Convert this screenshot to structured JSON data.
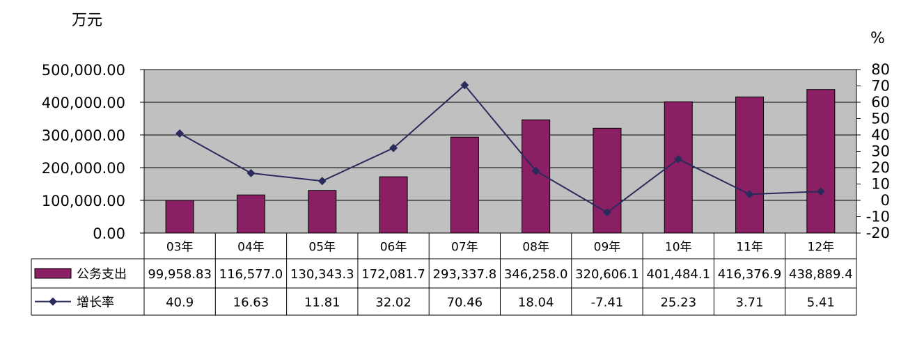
{
  "left_unit": "万元",
  "right_unit": "%",
  "colors": {
    "plot_bg": "#c0c0c0",
    "bar": "#8b1f63",
    "line": "#2a2a5c",
    "grid": "#000000"
  },
  "chart_data": {
    "type": "bar",
    "title": "",
    "categories": [
      "03年",
      "04年",
      "05年",
      "06年",
      "07年",
      "08年",
      "09年",
      "10年",
      "11年",
      "12年"
    ],
    "series": [
      {
        "name": "公务支出",
        "type": "bar",
        "axis": "left",
        "values": [
          99958.83,
          116577.0,
          130343.3,
          172081.7,
          293337.8,
          346258.0,
          320606.1,
          401484.1,
          416376.9,
          438889.4
        ],
        "labels": [
          "99,958.83",
          "116,577.0",
          "130,343.3",
          "172,081.7",
          "293,337.8",
          "346,258.0",
          "320,606.1",
          "401,484.1",
          "416,376.9",
          "438,889.4"
        ]
      },
      {
        "name": "增长率",
        "type": "line",
        "axis": "right",
        "values": [
          40.9,
          16.63,
          11.81,
          32.02,
          70.46,
          18.04,
          -7.41,
          25.23,
          3.71,
          5.41
        ],
        "labels": [
          "40.9",
          "16.63",
          "11.81",
          "32.02",
          "70.46",
          "18.04",
          "-7.41",
          "25.23",
          "3.71",
          "5.41"
        ]
      }
    ],
    "left_axis": {
      "ylim": [
        0,
        500000
      ],
      "ticks": [
        0,
        100000,
        200000,
        300000,
        400000,
        500000
      ],
      "tick_labels": [
        "0.00",
        "100,000.00",
        "200,000.00",
        "300,000.00",
        "400,000.00",
        "500,000.00"
      ]
    },
    "right_axis": {
      "ylim": [
        -20,
        80
      ],
      "ticks": [
        -20,
        -10,
        0,
        10,
        20,
        30,
        40,
        50,
        60,
        70,
        80
      ],
      "tick_labels": [
        "-20",
        "-10",
        "0",
        "10",
        "20",
        "30",
        "40",
        "50",
        "60",
        "70",
        "80"
      ]
    },
    "grid": true,
    "legend": "data-table"
  }
}
